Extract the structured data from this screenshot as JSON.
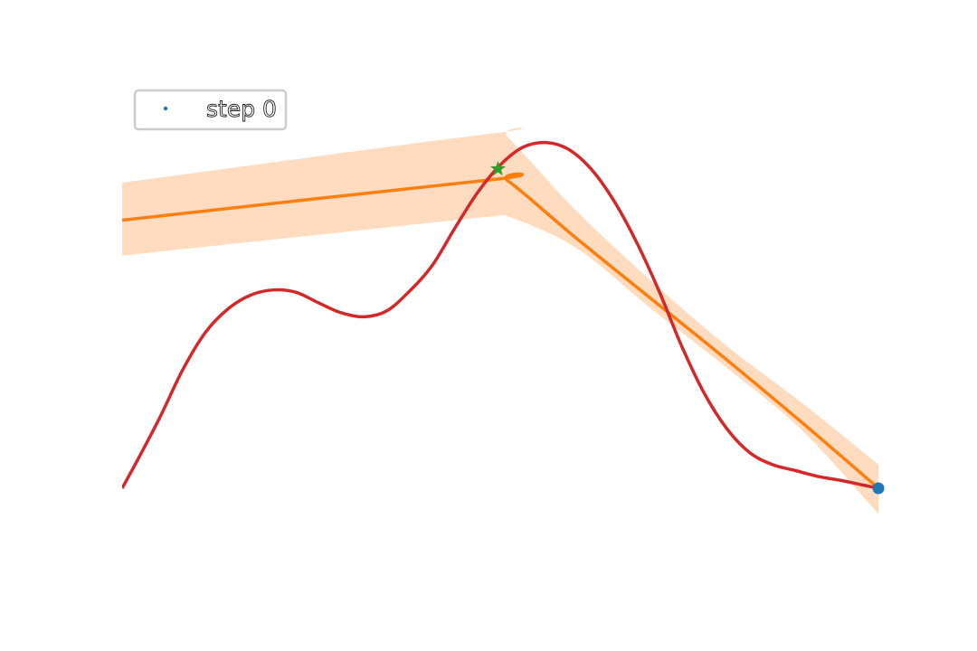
{
  "chart_data": {
    "type": "line",
    "title": "",
    "xlabel": "",
    "ylabel": "",
    "axes_visible": false,
    "grid": false,
    "xlim": [
      0,
      1
    ],
    "ylim": [
      0,
      1
    ],
    "legend": {
      "placement": "top-left",
      "entries": [
        "step 0"
      ]
    },
    "colors": {
      "objective": "#d62728",
      "surrogate_mean": "#ff7f0e",
      "uncertainty_band": "#ffdcc0",
      "observation": "#1f77b4",
      "next_point": "#2ca02c"
    },
    "objective": {
      "x": [
        0.0,
        0.02,
        0.05,
        0.08,
        0.11,
        0.14,
        0.17,
        0.2,
        0.23,
        0.26,
        0.29,
        0.32,
        0.35,
        0.38,
        0.41,
        0.44,
        0.47,
        0.5,
        0.53,
        0.56,
        0.59,
        0.62,
        0.65,
        0.68,
        0.71,
        0.74,
        0.77,
        0.8,
        0.83,
        0.86,
        0.89,
        0.92,
        0.95,
        0.98,
        1.0
      ],
      "y": [
        0.0,
        0.07,
        0.18,
        0.3,
        0.395,
        0.455,
        0.49,
        0.503,
        0.497,
        0.47,
        0.445,
        0.435,
        0.45,
        0.5,
        0.565,
        0.66,
        0.75,
        0.82,
        0.865,
        0.877,
        0.86,
        0.81,
        0.73,
        0.625,
        0.5,
        0.36,
        0.24,
        0.15,
        0.09,
        0.06,
        0.045,
        0.03,
        0.02,
        0.008,
        0.0
      ]
    },
    "surrogate_mean": {
      "x": [
        0.0,
        0.49,
        0.51,
        0.6,
        0.7,
        0.8,
        0.9,
        1.0
      ],
      "y": [
        0.68,
        0.783,
        0.78,
        0.635,
        0.48,
        0.325,
        0.165,
        0.0
      ]
    },
    "uncertainty_band": {
      "x": [
        0.0,
        0.49,
        0.51,
        0.6,
        0.7,
        0.8,
        0.9,
        1.0
      ],
      "lower": [
        0.59,
        0.69,
        0.69,
        0.61,
        0.455,
        0.305,
        0.145,
        -0.065
      ],
      "upper": [
        0.775,
        0.9,
        0.89,
        0.705,
        0.525,
        0.36,
        0.215,
        0.06
      ]
    },
    "observations": [
      {
        "x": 1.0,
        "y": 0.0
      }
    ],
    "next_point": {
      "x": 0.497,
      "y": 0.81
    }
  }
}
